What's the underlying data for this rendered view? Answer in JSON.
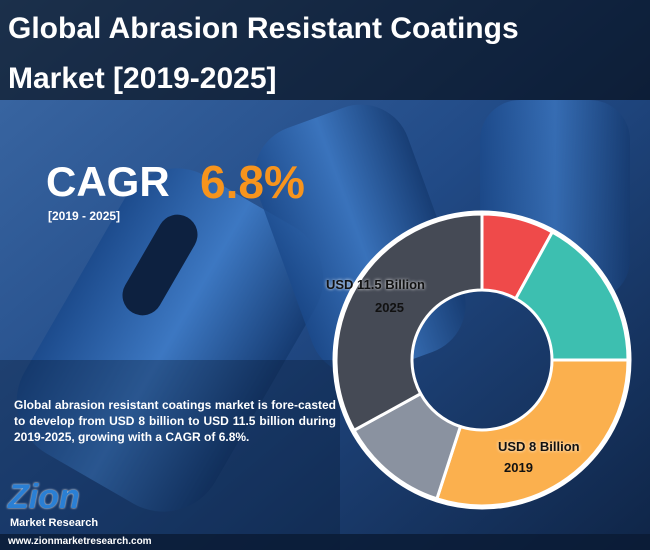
{
  "header": {
    "title_lines": [
      "Global Abrasion Resistant Coatings",
      "Market [2019-2025]"
    ]
  },
  "cagr": {
    "label": "CAGR",
    "value": "6.8%",
    "period": "[2019 - 2025]"
  },
  "description": "Global abrasion resistant coatings market is fore-casted to develop from USD 8 billion to USD 11.5 billion during 2019-2025, growing with a CAGR of 6.8%.",
  "donut": {
    "segments": [
      {
        "color": "#ef4a4a",
        "value": 8
      },
      {
        "color": "#3dbfb0",
        "value": 17
      },
      {
        "color": "#fbb04e",
        "value": 30
      },
      {
        "color": "#8a92a0",
        "value": 12
      },
      {
        "color": "#454a55",
        "value": 33
      }
    ],
    "annotations": [
      {
        "amount": "USD 11.5 Billion",
        "year": "2025"
      },
      {
        "amount": "USD 8 Billion",
        "year": "2019"
      }
    ]
  },
  "logo": {
    "brand": "Zion",
    "tagline": "Market Research"
  },
  "url": "www.zionmarketresearch.com"
}
